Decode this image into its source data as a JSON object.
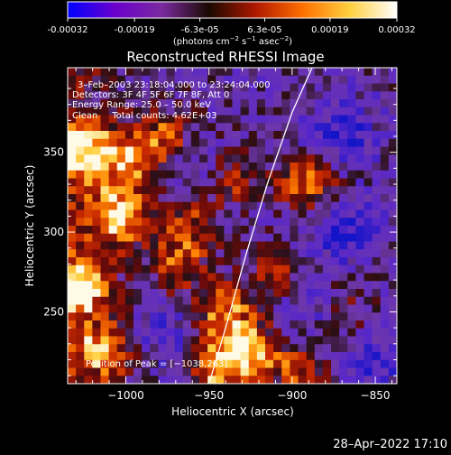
{
  "chart_data": {
    "type": "heatmap",
    "title": "Reconstructed RHESSI Image",
    "xlabel": "Heliocentric X (arcsec)",
    "ylabel": "Heliocentric Y (arcsec)",
    "xlim": [
      -1035,
      -837
    ],
    "ylim": [
      205,
      403
    ],
    "xticks": [
      -1000,
      -950,
      -900,
      -850
    ],
    "xtick_labels": [
      "−1000",
      "−950",
      "−900",
      "−850"
    ],
    "yticks": [
      250,
      300,
      350
    ],
    "ytick_labels": [
      "250",
      "300",
      "350"
    ],
    "grid": false,
    "colorbar": {
      "orientation": "horizontal",
      "placement": "top",
      "range": [
        -0.00032,
        0.00032
      ],
      "ticks": [
        -0.00032,
        -0.00019,
        -6.3e-05,
        6.3e-05,
        0.00019,
        0.00032
      ],
      "tick_labels": [
        "-0.00032",
        "-0.00019",
        "-6.3e-05",
        "6.3e-05",
        "0.00019",
        "0.00032"
      ],
      "unit_label": {
        "prefix": "(photons cm",
        "exp1": "−2",
        "mid": " s",
        "exp2": "−1",
        "mid2": " asec",
        "exp3": "−2",
        "suffix": ")"
      },
      "colors": [
        "#0000ff",
        "#6a00cc",
        "#7a2aa0",
        "#1a0a00",
        "#b01800",
        "#ff7000",
        "#ffd040",
        "#ffffff"
      ]
    },
    "annotations": {
      "time_range": "3–Feb–2003 23:18:04.000 to 23:24:04.000",
      "detectors": "Detectors: 3F 4F 5F 6F 7F 8F, Att 0",
      "energy": "Energy Range: 25.0 – 50.0 keV",
      "clean": "Clean     Total counts: 4.62E+03",
      "peak": "Position of Peak = [−1038,263]"
    },
    "limb_curve": [
      [
        -950,
        205
      ],
      [
        -940,
        240
      ],
      [
        -928,
        285
      ],
      [
        -915,
        330
      ],
      [
        -900,
        375
      ],
      [
        -888,
        403
      ]
    ],
    "map_grid": {
      "nx": 40,
      "ny": 40
    },
    "hot_regions": [
      {
        "x": -1030,
        "y": 265,
        "amp": 1.0
      },
      {
        "x": -1025,
        "y": 350,
        "amp": 0.85
      },
      {
        "x": -1005,
        "y": 310,
        "amp": 0.9
      },
      {
        "x": -995,
        "y": 345,
        "amp": 0.7
      },
      {
        "x": -940,
        "y": 250,
        "amp": 0.75
      },
      {
        "x": -945,
        "y": 215,
        "amp": 0.8
      },
      {
        "x": -925,
        "y": 225,
        "amp": 0.7
      },
      {
        "x": -895,
        "y": 215,
        "amp": 0.55
      },
      {
        "x": -890,
        "y": 330,
        "amp": 0.7
      },
      {
        "x": -970,
        "y": 280,
        "amp": 0.6
      },
      {
        "x": -975,
        "y": 360,
        "amp": 0.55
      },
      {
        "x": -960,
        "y": 305,
        "amp": 0.5
      },
      {
        "x": -935,
        "y": 335,
        "amp": 0.5
      },
      {
        "x": -870,
        "y": 250,
        "amp": 0.4
      },
      {
        "x": -910,
        "y": 275,
        "amp": 0.45
      },
      {
        "x": -1015,
        "y": 225,
        "amp": 0.65
      }
    ],
    "cold_regions": [
      {
        "x": -870,
        "y": 300,
        "amp": 0.9
      },
      {
        "x": -870,
        "y": 360,
        "amp": 0.8
      },
      {
        "x": -890,
        "y": 250,
        "amp": 0.7
      },
      {
        "x": -960,
        "y": 340,
        "amp": 0.6
      },
      {
        "x": -975,
        "y": 235,
        "amp": 0.5
      },
      {
        "x": -850,
        "y": 220,
        "amp": 0.7
      }
    ]
  },
  "footer": {
    "timestamp": "28–Apr–2022 17:10"
  }
}
